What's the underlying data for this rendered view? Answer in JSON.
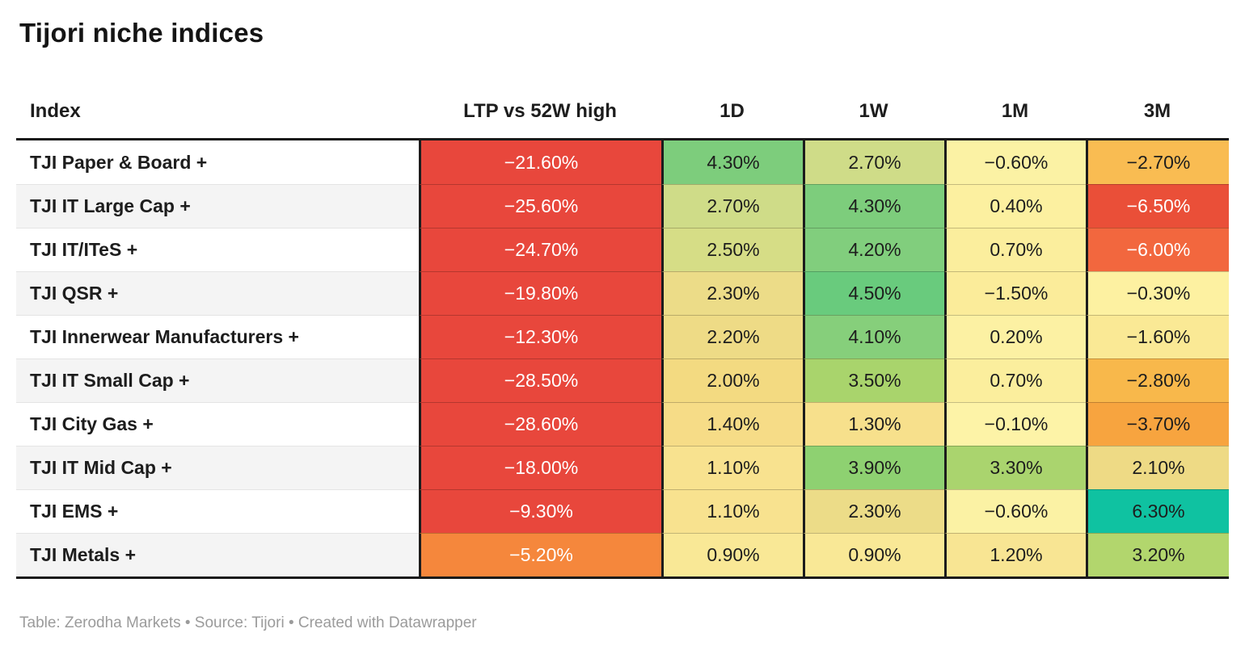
{
  "title": "Tijori niche indices",
  "footer": {
    "text": "Table: Zerodha Markets • Source: Tijori • Created with Datawrapper"
  },
  "chart_data": {
    "type": "table",
    "title": "Tijori niche indices",
    "columns": [
      "Index",
      "LTP vs 52W high",
      "1D",
      "1W",
      "1M",
      "3M"
    ],
    "layout_hints": {
      "heatmap": true,
      "negative_color_range": [
        "#e8473c",
        "#f9bc52"
      ],
      "positive_color_range": [
        "#fbf2a4",
        "#0fc2a1"
      ],
      "row_stripe_color": "#f4f4f4",
      "border_color": "#1a1a1a"
    },
    "rows": [
      {
        "label": "TJI Paper & Board +",
        "cells": [
          {
            "text": "−21.60%",
            "bg": "#e8473c",
            "fg": "#ffffff"
          },
          {
            "text": "4.30%",
            "bg": "#7dcd7c",
            "fg": "#1d1d1d"
          },
          {
            "text": "2.70%",
            "bg": "#cfdc88",
            "fg": "#1d1d1d"
          },
          {
            "text": "−0.60%",
            "bg": "#fbf2a4",
            "fg": "#1d1d1d"
          },
          {
            "text": "−2.70%",
            "bg": "#f9bc52",
            "fg": "#1d1d1d"
          }
        ]
      },
      {
        "label": "TJI IT Large Cap +",
        "cells": [
          {
            "text": "−25.60%",
            "bg": "#e8473c",
            "fg": "#ffffff"
          },
          {
            "text": "2.70%",
            "bg": "#cfdc88",
            "fg": "#1d1d1d"
          },
          {
            "text": "4.30%",
            "bg": "#7dcd7c",
            "fg": "#1d1d1d"
          },
          {
            "text": "0.40%",
            "bg": "#fcf0a0",
            "fg": "#1d1d1d"
          },
          {
            "text": "−6.50%",
            "bg": "#ea4f38",
            "fg": "#ffffff"
          }
        ]
      },
      {
        "label": "TJI IT/ITeS +",
        "cells": [
          {
            "text": "−24.70%",
            "bg": "#e8473c",
            "fg": "#ffffff"
          },
          {
            "text": "2.50%",
            "bg": "#d6dd86",
            "fg": "#1d1d1d"
          },
          {
            "text": "4.20%",
            "bg": "#81ce7d",
            "fg": "#1d1d1d"
          },
          {
            "text": "0.70%",
            "bg": "#fbee9d",
            "fg": "#1d1d1d"
          },
          {
            "text": "−6.00%",
            "bg": "#f2673e",
            "fg": "#ffffff"
          }
        ]
      },
      {
        "label": "TJI QSR +",
        "cells": [
          {
            "text": "−19.80%",
            "bg": "#e8473c",
            "fg": "#ffffff"
          },
          {
            "text": "2.30%",
            "bg": "#ecdc88",
            "fg": "#1d1d1d"
          },
          {
            "text": "4.50%",
            "bg": "#69cb7d",
            "fg": "#1d1d1d"
          },
          {
            "text": "−1.50%",
            "bg": "#fbec9a",
            "fg": "#1d1d1d"
          },
          {
            "text": "−0.30%",
            "bg": "#fdf1a1",
            "fg": "#1d1d1d"
          }
        ]
      },
      {
        "label": "TJI Innerwear Manufacturers +",
        "cells": [
          {
            "text": "−12.30%",
            "bg": "#e8473c",
            "fg": "#ffffff"
          },
          {
            "text": "2.20%",
            "bg": "#eedb86",
            "fg": "#1d1d1d"
          },
          {
            "text": "4.10%",
            "bg": "#86cf7b",
            "fg": "#1d1d1d"
          },
          {
            "text": "0.20%",
            "bg": "#fcf1a3",
            "fg": "#1d1d1d"
          },
          {
            "text": "−1.60%",
            "bg": "#fae995",
            "fg": "#1d1d1d"
          }
        ]
      },
      {
        "label": "TJI IT Small Cap +",
        "cells": [
          {
            "text": "−28.50%",
            "bg": "#e8473c",
            "fg": "#ffffff"
          },
          {
            "text": "2.00%",
            "bg": "#f3da81",
            "fg": "#1d1d1d"
          },
          {
            "text": "3.50%",
            "bg": "#a9d46c",
            "fg": "#1d1d1d"
          },
          {
            "text": "0.70%",
            "bg": "#fbee9d",
            "fg": "#1d1d1d"
          },
          {
            "text": "−2.80%",
            "bg": "#f8b84b",
            "fg": "#1d1d1d"
          }
        ]
      },
      {
        "label": "TJI City Gas +",
        "cells": [
          {
            "text": "−28.60%",
            "bg": "#e8473c",
            "fg": "#ffffff"
          },
          {
            "text": "1.40%",
            "bg": "#f6dc87",
            "fg": "#1d1d1d"
          },
          {
            "text": "1.30%",
            "bg": "#f7e08c",
            "fg": "#1d1d1d"
          },
          {
            "text": "−0.10%",
            "bg": "#fdf3a7",
            "fg": "#1d1d1d"
          },
          {
            "text": "−3.70%",
            "bg": "#f7a43f",
            "fg": "#1d1d1d"
          }
        ]
      },
      {
        "label": "TJI IT Mid Cap +",
        "cells": [
          {
            "text": "−18.00%",
            "bg": "#e8473c",
            "fg": "#ffffff"
          },
          {
            "text": "1.10%",
            "bg": "#f8e28f",
            "fg": "#1d1d1d"
          },
          {
            "text": "3.90%",
            "bg": "#8ed171",
            "fg": "#1d1d1d"
          },
          {
            "text": "3.30%",
            "bg": "#aad46e",
            "fg": "#1d1d1d"
          },
          {
            "text": "2.10%",
            "bg": "#eeda85",
            "fg": "#1d1d1d"
          }
        ]
      },
      {
        "label": "TJI EMS +",
        "cells": [
          {
            "text": "−9.30%",
            "bg": "#e8473c",
            "fg": "#ffffff"
          },
          {
            "text": "1.10%",
            "bg": "#f8e28f",
            "fg": "#1d1d1d"
          },
          {
            "text": "2.30%",
            "bg": "#ecdc88",
            "fg": "#1d1d1d"
          },
          {
            "text": "−0.60%",
            "bg": "#fbf2a4",
            "fg": "#1d1d1d"
          },
          {
            "text": "6.30%",
            "bg": "#0fc2a1",
            "fg": "#1d1d1d"
          }
        ]
      },
      {
        "label": "TJI Metals +",
        "cells": [
          {
            "text": "−5.20%",
            "bg": "#f5873c",
            "fg": "#ffffff"
          },
          {
            "text": "0.90%",
            "bg": "#f9e896",
            "fg": "#1d1d1d"
          },
          {
            "text": "0.90%",
            "bg": "#f9e896",
            "fg": "#1d1d1d"
          },
          {
            "text": "1.20%",
            "bg": "#f8e593",
            "fg": "#1d1d1d"
          },
          {
            "text": "3.20%",
            "bg": "#b2d66d",
            "fg": "#1d1d1d"
          }
        ]
      }
    ]
  }
}
